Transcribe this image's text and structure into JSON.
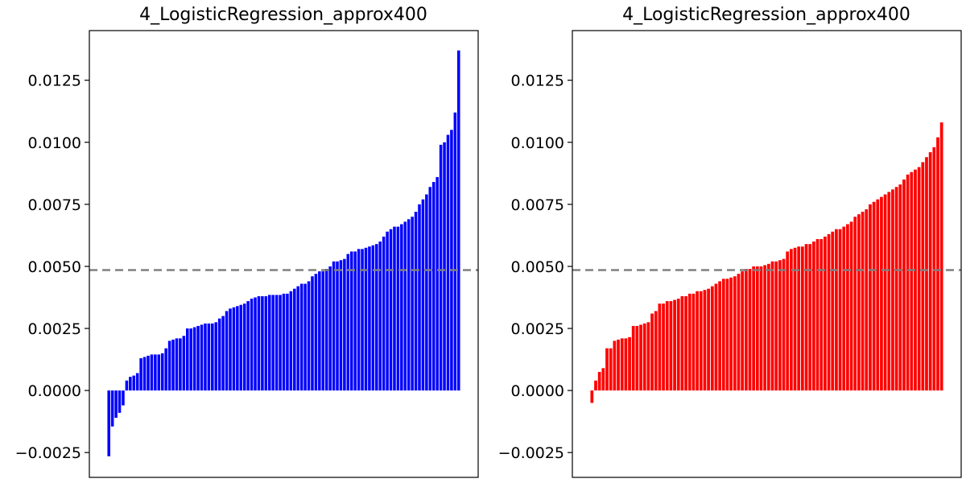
{
  "chart_data": [
    {
      "type": "bar",
      "title": "4_LogisticRegression_approx400",
      "xlabel": "",
      "ylabel": "",
      "ylim": [
        -0.0035,
        0.0145
      ],
      "yticks": [
        -0.0025,
        0.0,
        0.0025,
        0.005,
        0.0075,
        0.01,
        0.0125
      ],
      "ytick_labels": [
        "−0.0025",
        "0.0000",
        "0.0025",
        "0.0050",
        "0.0075",
        "0.0100",
        "0.0125"
      ],
      "reference_line": 0.00485,
      "bar_color": "#0000ff",
      "line_color": "#808080",
      "grid": false,
      "values": [
        -0.00265,
        -0.00145,
        -0.0011,
        -0.0009,
        -0.0006,
        0.0004,
        0.00055,
        0.0006,
        0.0007,
        0.0013,
        0.00135,
        0.0014,
        0.00145,
        0.00145,
        0.00145,
        0.0015,
        0.0017,
        0.002,
        0.00205,
        0.0021,
        0.0021,
        0.0022,
        0.0025,
        0.0025,
        0.00255,
        0.0026,
        0.00265,
        0.0027,
        0.0027,
        0.0027,
        0.00275,
        0.0029,
        0.003,
        0.0032,
        0.0033,
        0.00335,
        0.0034,
        0.00345,
        0.0035,
        0.0036,
        0.0037,
        0.00375,
        0.0038,
        0.0038,
        0.0038,
        0.00385,
        0.00385,
        0.00385,
        0.00385,
        0.0039,
        0.0039,
        0.004,
        0.0041,
        0.0042,
        0.0043,
        0.0043,
        0.0044,
        0.0046,
        0.0047,
        0.0048,
        0.0048,
        0.0049,
        0.005,
        0.0052,
        0.0052,
        0.00525,
        0.0053,
        0.0055,
        0.0056,
        0.0056,
        0.0057,
        0.0057,
        0.00575,
        0.0058,
        0.00585,
        0.0059,
        0.006,
        0.0062,
        0.0064,
        0.0065,
        0.0066,
        0.0066,
        0.0067,
        0.0068,
        0.0069,
        0.007,
        0.0072,
        0.0075,
        0.0077,
        0.0079,
        0.0082,
        0.0084,
        0.0086,
        0.0099,
        0.01,
        0.0103,
        0.0105,
        0.0112,
        0.0137
      ]
    },
    {
      "type": "bar",
      "title": "4_LogisticRegression_approx400",
      "xlabel": "",
      "ylabel": "",
      "ylim": [
        -0.0035,
        0.0145
      ],
      "yticks": [
        -0.0025,
        0.0,
        0.0025,
        0.005,
        0.0075,
        0.01,
        0.0125
      ],
      "ytick_labels": [
        "−0.0025",
        "0.0000",
        "0.0025",
        "0.0050",
        "0.0075",
        "0.0100",
        "0.0125"
      ],
      "reference_line": 0.00485,
      "bar_color": "#ff0000",
      "line_color": "#808080",
      "grid": false,
      "values": [
        -0.0005,
        0.0004,
        0.00075,
        0.0009,
        0.0017,
        0.0017,
        0.002,
        0.00205,
        0.0021,
        0.0021,
        0.00215,
        0.0026,
        0.0026,
        0.00265,
        0.0027,
        0.00275,
        0.0031,
        0.0032,
        0.0035,
        0.0035,
        0.0036,
        0.0036,
        0.00365,
        0.0037,
        0.0038,
        0.0038,
        0.0039,
        0.0039,
        0.004,
        0.004,
        0.00405,
        0.0041,
        0.0042,
        0.0043,
        0.0044,
        0.0045,
        0.0045,
        0.00455,
        0.0046,
        0.0047,
        0.0048,
        0.0049,
        0.0049,
        0.005,
        0.005,
        0.005,
        0.00505,
        0.0051,
        0.0052,
        0.0052,
        0.00525,
        0.0053,
        0.0056,
        0.0057,
        0.00575,
        0.0058,
        0.0058,
        0.0059,
        0.0059,
        0.006,
        0.0061,
        0.0061,
        0.0062,
        0.0063,
        0.0064,
        0.0065,
        0.0065,
        0.0066,
        0.0067,
        0.0068,
        0.007,
        0.0071,
        0.0072,
        0.0073,
        0.0075,
        0.0076,
        0.0077,
        0.0078,
        0.0079,
        0.008,
        0.0081,
        0.0082,
        0.0083,
        0.0085,
        0.0087,
        0.0088,
        0.0089,
        0.009,
        0.0092,
        0.0094,
        0.0096,
        0.0098,
        0.0102,
        0.0108
      ]
    }
  ]
}
